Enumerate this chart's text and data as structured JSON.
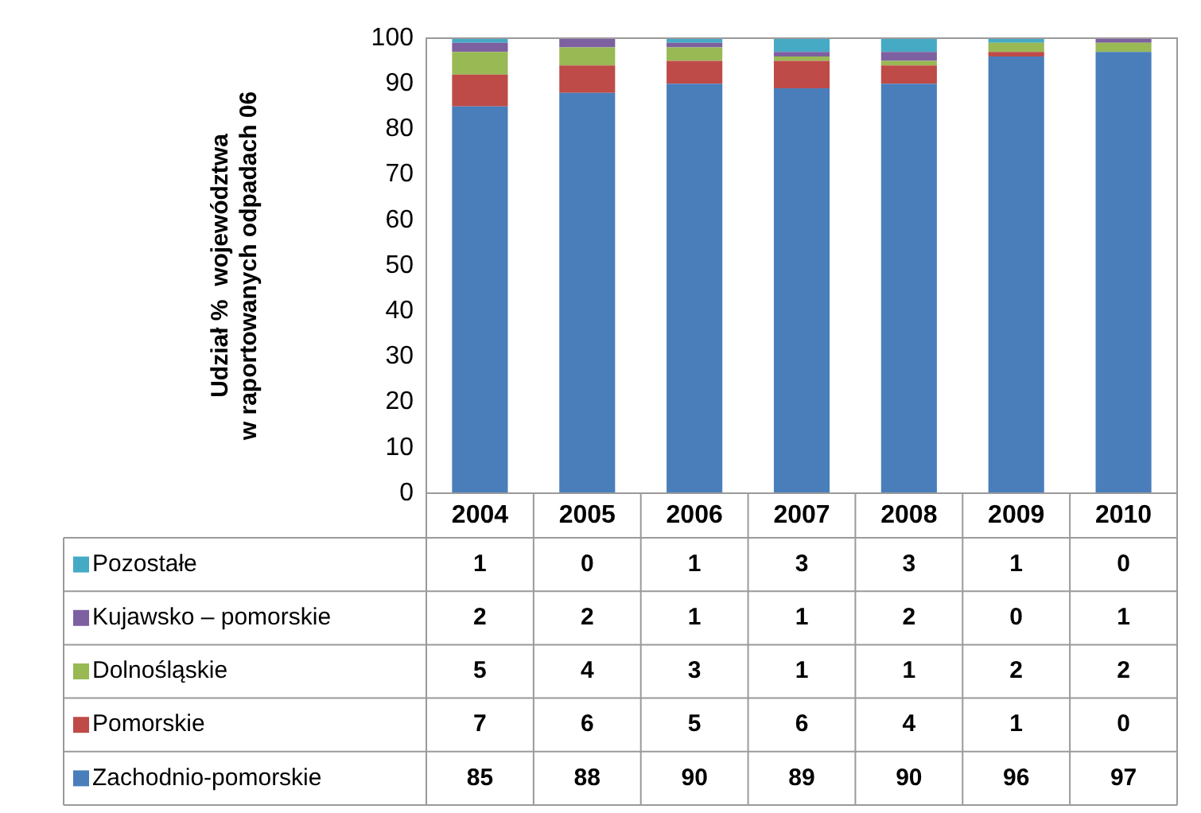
{
  "chart_data": {
    "type": "bar",
    "stacked": true,
    "ylabel": "Udział %  województwa\nw raportowanych odpadach 06",
    "categories": [
      "2004",
      "2005",
      "2006",
      "2007",
      "2008",
      "2009",
      "2010"
    ],
    "ylim": [
      0,
      100
    ],
    "yticks": [
      0,
      10,
      20,
      30,
      40,
      50,
      60,
      70,
      80,
      90,
      100
    ],
    "grid": false,
    "legend": "bottom",
    "data_labels": true,
    "series": [
      {
        "name": "Zachodnio-pomorskie",
        "color": "#4a7ebb",
        "values": [
          85,
          88,
          90,
          89,
          90,
          96,
          97
        ]
      },
      {
        "name": "Pomorskie",
        "color": "#be4b48",
        "values": [
          7,
          6,
          5,
          6,
          4,
          1,
          0
        ]
      },
      {
        "name": "Dolnośląskie",
        "color": "#98b954",
        "values": [
          5,
          4,
          3,
          1,
          1,
          2,
          2
        ]
      },
      {
        "name": "Kujawsko – pomorskie",
        "color": "#7d60a0",
        "values": [
          2,
          2,
          1,
          1,
          2,
          0,
          1
        ]
      },
      {
        "name": "Pozostałe",
        "color": "#46aac5",
        "values": [
          1,
          0,
          1,
          3,
          3,
          1,
          0
        ]
      }
    ]
  }
}
